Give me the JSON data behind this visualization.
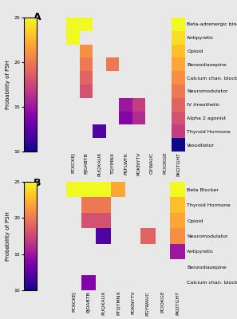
{
  "panel_A": {
    "x_labels": [
      "PCKCKEJ",
      "PJDABTB",
      "PUQXAUX",
      "TQYMNX",
      "PSFLWFK",
      "POKNYTV",
      "GYWAUC",
      "PCIOKGE",
      "PKDTGHT"
    ],
    "y_labels": [
      "Beta-adrenergic blocker",
      "Antipyretic",
      "Opioid",
      "Benzodiazepine",
      "Calcium chan. block.",
      "Neuromodulator",
      "IV Anesthetic",
      "Alpha 2 agonist",
      "Thyroid Hormone",
      "Vasodilator"
    ],
    "matrix": [
      [
        25,
        25,
        null,
        null,
        null,
        null,
        null,
        null,
        25
      ],
      [
        25,
        null,
        null,
        null,
        null,
        null,
        null,
        null,
        24
      ],
      [
        null,
        21,
        null,
        null,
        null,
        null,
        null,
        null,
        23
      ],
      [
        null,
        20,
        null,
        20,
        null,
        null,
        null,
        null,
        22
      ],
      [
        null,
        19,
        null,
        null,
        null,
        null,
        null,
        null,
        21
      ],
      [
        null,
        18,
        null,
        null,
        null,
        null,
        null,
        null,
        20
      ],
      [
        null,
        null,
        null,
        null,
        15,
        17,
        null,
        null,
        19
      ],
      [
        null,
        null,
        null,
        null,
        14,
        16,
        null,
        null,
        18
      ],
      [
        null,
        null,
        12,
        null,
        null,
        null,
        null,
        null,
        17
      ],
      [
        null,
        null,
        null,
        null,
        null,
        null,
        null,
        null,
        10
      ]
    ]
  },
  "panel_B": {
    "x_labels": [
      "PCKCKEJ",
      "PJDABTB",
      "PUQXAUX",
      "PTQYMNX",
      "POKNYTV",
      "PGYWAUC",
      "PCIOKGE",
      "PKDTGHT"
    ],
    "y_labels": [
      "Beta Blocker",
      "Thyroid Hormone",
      "Opioid",
      "Neuromodulator",
      "Antipyretic",
      "Benzodiazepine",
      "Calcium chan. block"
    ],
    "matrix": [
      [
        25,
        25,
        25,
        22,
        null,
        null,
        null,
        25
      ],
      [
        null,
        20,
        20,
        null,
        null,
        null,
        null,
        23
      ],
      [
        null,
        18,
        18,
        null,
        null,
        null,
        null,
        22
      ],
      [
        null,
        null,
        12,
        null,
        null,
        19,
        null,
        21
      ],
      [
        null,
        null,
        null,
        null,
        null,
        null,
        null,
        15
      ],
      [
        null,
        null,
        null,
        null,
        null,
        null,
        null,
        null
      ],
      [
        null,
        14,
        null,
        null,
        null,
        null,
        null,
        null
      ]
    ]
  },
  "vmin": 10,
  "vmax": 25,
  "cbar_ticks": [
    10,
    15,
    20,
    25
  ],
  "y_axis_label": "Probability of PSH",
  "bg_color": "#e8e8e8",
  "panel_label_fontsize": 9,
  "tick_fontsize": 4.5,
  "ylabel_fontsize": 5.0
}
